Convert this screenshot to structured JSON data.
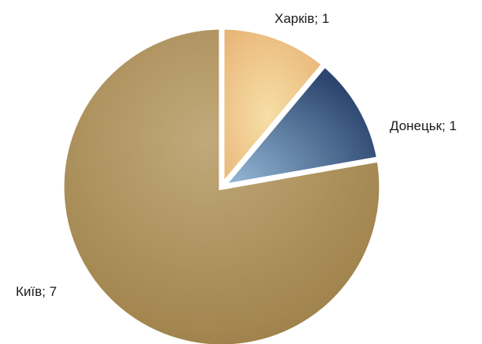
{
  "chart_data": {
    "type": "pie",
    "categories": [
      "Харків",
      "Донецьк",
      "Київ"
    ],
    "values": [
      1,
      1,
      7
    ],
    "labels": [
      "Харків; 1",
      "Донецьк; 1",
      "Київ; 7"
    ],
    "colors": [
      "#f0c88a",
      "#35507a",
      "#a88a52"
    ],
    "start_angle": "top, clockwise",
    "legend": "none"
  }
}
